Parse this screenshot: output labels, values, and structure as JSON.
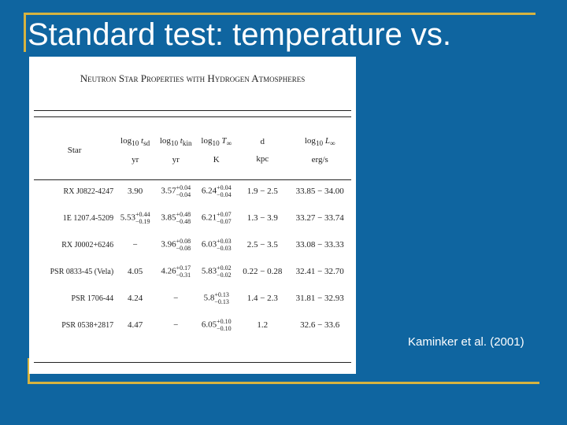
{
  "slide": {
    "title": "Standard test: temperature vs.",
    "caption": "Kaminker et al. (2001)"
  },
  "table": {
    "title": "Neutron Star Properties with Hydrogen Atmospheres",
    "headers": [
      {
        "main": "Star"
      },
      {
        "main": "log",
        "base": "10",
        "var": "t",
        "varsub": "sd",
        "unit": "yr"
      },
      {
        "main": "log",
        "base": "10",
        "var": "t",
        "varsub": "kin",
        "unit": "yr"
      },
      {
        "main": "log",
        "base": "10",
        "var": "T",
        "varsub": "∞",
        "unit": "K"
      },
      {
        "main": "d",
        "unit": "kpc"
      },
      {
        "main": "log",
        "base": "10",
        "var": "L",
        "varsub": "∞",
        "unit": "erg/s"
      }
    ],
    "rows": [
      [
        "RX J0822-4247",
        {
          "v": "3.90"
        },
        {
          "v": "3.57",
          "plus": "+0.04",
          "minus": "−0.04"
        },
        {
          "v": "6.24",
          "plus": "+0.04",
          "minus": "−0.04"
        },
        {
          "v": "1.9 − 2.5"
        },
        {
          "v": "33.85 − 34.00"
        }
      ],
      [
        "1E 1207.4-5209",
        {
          "v": "5.53",
          "plus": "+0.44",
          "minus": "−0.19"
        },
        {
          "v": "3.85",
          "plus": "+0.48",
          "minus": "−0.48"
        },
        {
          "v": "6.21",
          "plus": "+0.07",
          "minus": "−0.07"
        },
        {
          "v": "1.3 − 3.9"
        },
        {
          "v": "33.27 − 33.74"
        }
      ],
      [
        "RX J0002+6246",
        {
          "v": "−"
        },
        {
          "v": "3.96",
          "plus": "+0.08",
          "minus": "−0.08"
        },
        {
          "v": "6.03",
          "plus": "+0.03",
          "minus": "−0.03"
        },
        {
          "v": "2.5 − 3.5"
        },
        {
          "v": "33.08 − 33.33"
        }
      ],
      [
        "PSR 0833-45 (Vela)",
        {
          "v": "4.05"
        },
        {
          "v": "4.26",
          "plus": "+0.17",
          "minus": "−0.31"
        },
        {
          "v": "5.83",
          "plus": "+0.02",
          "minus": "−0.02"
        },
        {
          "v": "0.22 − 0.28"
        },
        {
          "v": "32.41 − 32.70"
        }
      ],
      [
        "PSR 1706-44",
        {
          "v": "4.24"
        },
        {
          "v": "−"
        },
        {
          "v": "5.8",
          "plus": "+0.13",
          "minus": "−0.13"
        },
        {
          "v": "1.4 − 2.3"
        },
        {
          "v": "31.81 − 32.93"
        }
      ],
      [
        "PSR 0538+2817",
        {
          "v": "4.47"
        },
        {
          "v": "−"
        },
        {
          "v": "6.05",
          "plus": "+0.10",
          "minus": "−0.10"
        },
        {
          "v": "1.2"
        },
        {
          "v": "32.6 − 33.6"
        }
      ]
    ]
  }
}
